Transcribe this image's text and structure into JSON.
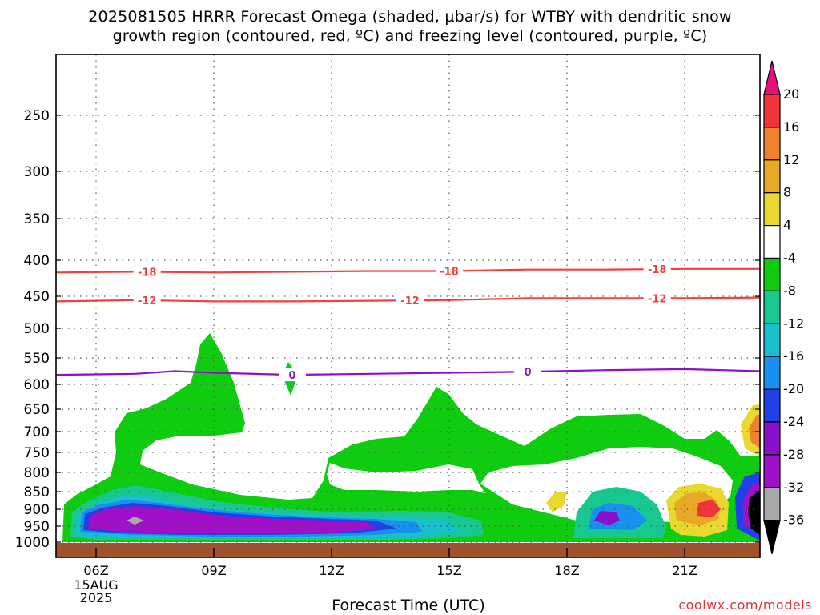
{
  "title": {
    "line1": "2025081505 HRRR Forecast Omega (shaded, µbar/s) for WTBY with dendritic snow",
    "line2": "growth region (contoured, red, ºC) and freezing level (contoured, purple, ºC)"
  },
  "xlabel": "Forecast Time (UTC)",
  "credit": "coolwx.com/models",
  "colors": {
    "plus_24_plus": "#e8117a",
    "plus_16_20": "#f0343c",
    "plus_12_16": "#f0822a",
    "plus_8_12": "#e8a828",
    "plus_4_8": "#e8d830",
    "minus_4_4": "#ffffff",
    "minus_8_4": "#10cc10",
    "minus_12_8": "#18c890",
    "minus_16_12": "#18c0cc",
    "minus_20_16": "#1890f0",
    "minus_24_20": "#2040e8",
    "minus_28_24": "#8810cc",
    "minus_32_28": "#a010c8",
    "minus_36_32": "#a8a8a8",
    "below_36": "#000000",
    "dgz": "#f04040",
    "freezing": "#9010c8",
    "ground": "#a0522d"
  },
  "chart_data": {
    "type": "contour",
    "x_axis": {
      "label": "Forecast Time (UTC)",
      "ticks": [
        "06Z",
        "09Z",
        "12Z",
        "15Z",
        "18Z",
        "21Z"
      ],
      "first_tick_sublabels": [
        "15AUG",
        "2025"
      ],
      "range": [
        "2025-08-15 05Z",
        "2025-08-15 23Z"
      ]
    },
    "y_axis": {
      "label": "",
      "unit": "hPa",
      "ticks": [
        250,
        300,
        350,
        400,
        450,
        500,
        550,
        600,
        650,
        700,
        750,
        800,
        850,
        900,
        950,
        1000
      ],
      "range": [
        1020,
        200
      ],
      "inverted": true
    },
    "colorbar": {
      "levels": [
        20,
        16,
        12,
        8,
        4,
        -4,
        -8,
        -12,
        -16,
        -20,
        -24,
        -28,
        -32,
        -36
      ],
      "unit": "µbar/s"
    },
    "contour_lines": [
      {
        "field": "temperature",
        "value": -18,
        "label": "-18",
        "color": "dgz",
        "x_hours": [
          5,
          7,
          9,
          11,
          13,
          15,
          17,
          19,
          21,
          23
        ],
        "pressure": [
          417,
          416,
          417,
          416,
          415,
          415,
          413,
          413,
          412,
          412
        ],
        "label_hours": [
          7.3,
          15.0,
          20.3
        ]
      },
      {
        "field": "temperature",
        "value": -12,
        "label": "-12",
        "color": "dgz",
        "x_hours": [
          5,
          7,
          9,
          11,
          13,
          15,
          17,
          19,
          21,
          23
        ],
        "pressure": [
          458,
          456,
          458,
          458,
          457,
          456,
          453,
          453,
          453,
          452
        ],
        "label_hours": [
          7.3,
          14.0,
          20.3
        ]
      },
      {
        "field": "temperature",
        "value": 0,
        "label": "0",
        "color": "freezing",
        "x_hours": [
          5,
          7,
          8,
          9,
          11,
          13,
          15,
          17,
          19,
          21,
          23
        ],
        "pressure": [
          582,
          580,
          575,
          578,
          582,
          580,
          578,
          576,
          573,
          571,
          575
        ],
        "label_hours": [
          11.0,
          17.0
        ]
      }
    ],
    "shaded_regions": [
      {
        "level": "-8 to -4 (descent)",
        "color": "minus_8_4",
        "approx_extent": "surface to ~650 hPa, 05Z-23Z; towers near 08Z (to ~515 hPa) and 15Z (to ~610 hPa)"
      },
      {
        "level": "-36 to -28 (strongest descent)",
        "color": "minus_32_28",
        "approx_extent": "~900-965 hPa, 06Z-13Z"
      },
      {
        "level": "4 to 20 (ascent)",
        "color": "plus_16_20",
        "approx_extent": "~860-960 hPa near 21Z-22Z; ~650-720 hPa near 23Z"
      }
    ]
  }
}
